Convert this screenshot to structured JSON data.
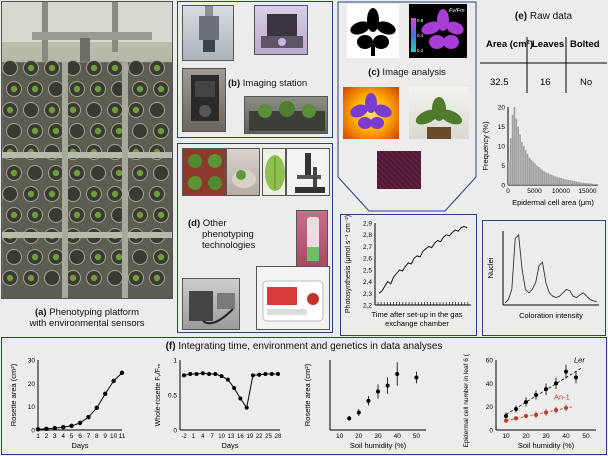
{
  "panel_a": {
    "letter": "(a)",
    "caption_line1": " Phenotyping  platform",
    "caption_line2": "with environmental sensors"
  },
  "panel_b": {
    "letter": "(b)",
    "caption": " Imaging station"
  },
  "panel_c": {
    "letter": "(c)",
    "caption": " Image analysis",
    "label_fv_fm": "Fv/Fm",
    "scale_high": "0.8",
    "scale_mid": "0.4",
    "scale_low": "0.2"
  },
  "panel_d": {
    "letter": "(d)",
    "caption_line1": " Other",
    "caption_line2": "phenotyping",
    "caption_line3": "technologies"
  },
  "panel_e": {
    "letter": "(e)",
    "caption": " Raw data",
    "table": {
      "headers": [
        "Area (cm²)",
        "Leaves",
        "Bolted"
      ],
      "row": [
        "32.5",
        "16",
        "No"
      ]
    }
  },
  "panel_f": {
    "letter": "(f)",
    "caption": " Integrating time, environment  and genetics in data analyses"
  },
  "colors": {
    "border": "#2b3f86",
    "background": "#ececec",
    "an1": "#c0392b"
  },
  "chart_data": [
    {
      "type": "bar",
      "ylabel": "Frequency (%)",
      "xlabel": "Epidermal cell area (μm)",
      "x_ticks": [
        "0",
        "5000",
        "10000",
        "15000"
      ],
      "y_ticks": [
        "0",
        "5",
        "10",
        "15",
        "20"
      ],
      "ylim": [
        0,
        20
      ],
      "values": [
        6,
        12,
        18,
        20,
        17,
        15,
        13,
        11,
        10,
        9,
        8,
        7,
        6.5,
        6,
        5.5,
        5,
        4.6,
        4.2,
        3.8,
        3.5,
        3.2,
        3,
        2.8,
        2.6,
        2.4,
        2.2,
        2,
        1.9,
        1.8,
        1.6,
        1.5,
        1.4,
        1.3,
        1.2,
        1.1,
        1,
        0.9,
        0.8,
        0.7,
        0.6,
        0.55,
        0.5,
        0.45,
        0.4,
        0.35,
        0.3,
        0.25,
        0.2
      ]
    },
    {
      "type": "line",
      "ylabel": "Photosynthesis (μmol s⁻¹ cm⁻²)",
      "xlabel_line1": "Time after set-up in the gas",
      "xlabel_line2": "exchange chamber",
      "y_ticks": [
        "2,2",
        "2,3",
        "2,4",
        "2,5",
        "2,6",
        "2,7",
        "2,8",
        "2,9"
      ],
      "ylim": [
        2.2,
        2.9
      ],
      "values": [
        2.3,
        2.32,
        2.36,
        2.4,
        2.38,
        2.44,
        2.47,
        2.5,
        2.49,
        2.53,
        2.56,
        2.55,
        2.6,
        2.62,
        2.61,
        2.66,
        2.68,
        2.7,
        2.69,
        2.73,
        2.75,
        2.74,
        2.78,
        2.8,
        2.79,
        2.82,
        2.84,
        2.83,
        2.86,
        2.87,
        2.86
      ]
    },
    {
      "type": "line",
      "ylabel": "Nuclei",
      "xlabel": "Coloration intensity",
      "values": [
        0,
        0.05,
        0.2,
        0.95,
        1,
        0.5,
        0.2,
        0.15,
        0.2,
        0.3,
        0.55,
        0.6,
        0.3,
        0.15,
        0.1,
        0.08,
        0.1,
        0.15,
        0.2,
        0.18,
        0.1,
        0.08,
        0.12,
        0.15,
        0.1,
        0.05,
        0.03,
        0.02
      ]
    },
    {
      "type": "line",
      "ylabel": "Rosette area (cm²)",
      "xlabel": "Days",
      "x": [
        1,
        2,
        3,
        4,
        5,
        6,
        7,
        8,
        9,
        10,
        11
      ],
      "y": [
        0.3,
        0.5,
        0.8,
        1.2,
        1.8,
        3,
        5.5,
        9.5,
        15.5,
        21,
        24.5
      ],
      "x_ticks": [
        "1",
        "2",
        "3",
        "4",
        "5",
        "6",
        "7",
        "8",
        "9",
        "10",
        "11"
      ],
      "y_ticks": [
        "0",
        "10",
        "20",
        "30"
      ],
      "ylim": [
        0,
        30
      ]
    },
    {
      "type": "line",
      "ylabel": "Whole-rosette Fᵥ/Fₘ",
      "xlabel": "Days",
      "x": [
        -2,
        0,
        2,
        4,
        6,
        8,
        10,
        12,
        14,
        16,
        18,
        20,
        22,
        24,
        26,
        28
      ],
      "y": [
        0.78,
        0.8,
        0.8,
        0.81,
        0.8,
        0.8,
        0.77,
        0.72,
        0.6,
        0.45,
        0.32,
        0.78,
        0.79,
        0.8,
        0.8,
        0.8
      ],
      "x_ticks": [
        "-2",
        "1",
        "4",
        "7",
        "10",
        "13",
        "16",
        "19",
        "22",
        "25",
        "28"
      ],
      "y_ticks": [
        "0",
        "0.5",
        "1"
      ],
      "ylim": [
        0,
        1
      ]
    },
    {
      "type": "scatter",
      "ylabel": "Rosette area (cm²)",
      "xlabel": "Soil humidity (%)",
      "x": [
        15,
        20,
        25,
        30,
        35,
        40,
        50
      ],
      "y": [
        10,
        15,
        25,
        33,
        38,
        48,
        45
      ],
      "err": [
        2,
        3,
        4,
        6,
        7,
        10,
        5
      ],
      "x_ticks": [
        "10",
        "20",
        "30",
        "40",
        "50"
      ],
      "ylim": [
        0,
        60
      ]
    },
    {
      "type": "scatter",
      "ylabel": "Epidermal cell number in leaf 6 (10³)",
      "xlabel": "Soil humidity (%)",
      "x_ticks": [
        "10",
        "20",
        "30",
        "40",
        "50"
      ],
      "y_ticks": [
        "0",
        "20",
        "40",
        "60"
      ],
      "ylim": [
        0,
        60
      ],
      "series": [
        {
          "name": "Ler",
          "x": [
            10,
            15,
            20,
            25,
            30,
            35,
            40,
            45
          ],
          "y": [
            12,
            18,
            24,
            30,
            35,
            40,
            50,
            45
          ],
          "err": [
            3,
            3,
            4,
            4,
            5,
            5,
            6,
            5
          ]
        },
        {
          "name": "An-1",
          "x": [
            10,
            15,
            20,
            25,
            30,
            35,
            40
          ],
          "y": [
            8,
            10,
            12,
            13,
            15,
            17,
            19
          ],
          "err": [
            2,
            2,
            2,
            3,
            3,
            3,
            3
          ]
        }
      ]
    }
  ]
}
